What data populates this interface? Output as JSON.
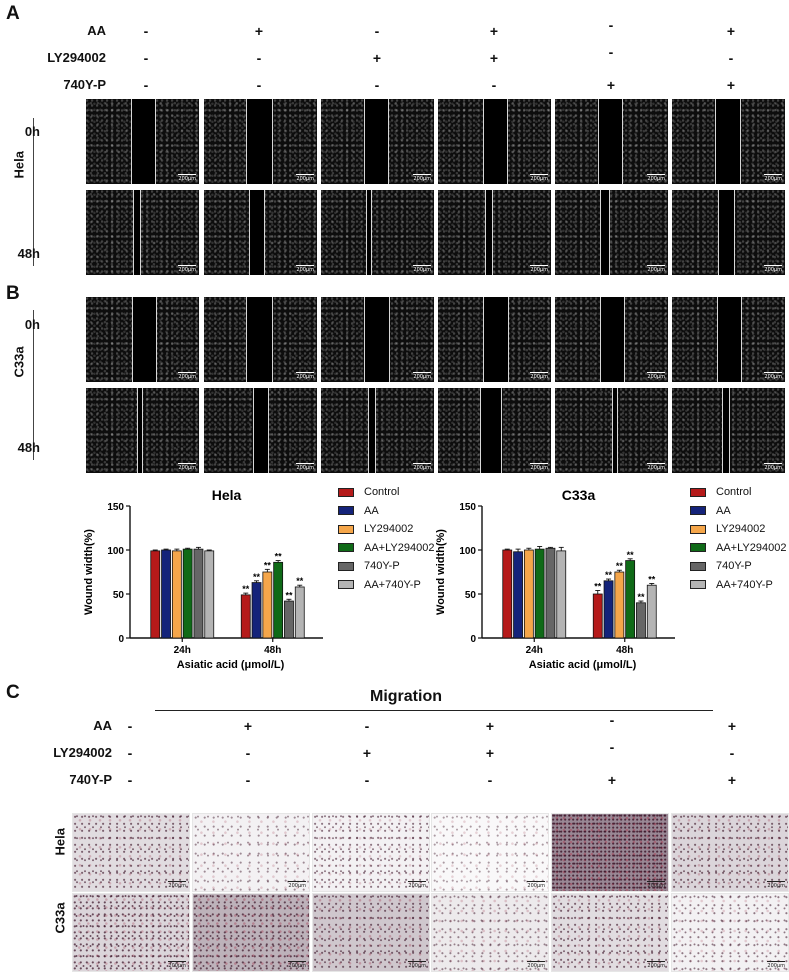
{
  "panels": {
    "A": "A",
    "B": "B",
    "C": "C"
  },
  "conditions": {
    "labels": [
      "AA",
      "LY294002",
      "740Y-P"
    ],
    "signs": [
      [
        "-",
        "+",
        "-",
        "+",
        "-",
        "+"
      ],
      [
        "-",
        "-",
        "+",
        "+",
        "-",
        "-"
      ],
      [
        "-",
        "-",
        "-",
        "-",
        "+",
        "+"
      ]
    ]
  },
  "wound": {
    "hela_label": "Hela",
    "c33a_label": "C33a",
    "t0": "0h",
    "t48": "48h",
    "scale": "200μm"
  },
  "migration": {
    "title": "Migration",
    "rows": [
      "Hela",
      "C33a"
    ],
    "scale": "200μm"
  },
  "colors": {
    "Control": "#b51a1a",
    "AA": "#14237a",
    "LY294002": "#f5a64a",
    "AA+LY294002": "#0f6a17",
    "740Y-P": "#666666",
    "AA+740Y-P": "#b4b4b4"
  },
  "chart_data": [
    {
      "type": "bar",
      "title": "Hela",
      "ylabel": "Wound width(%)",
      "xlabel": "Asiatic acid (μmol/L)",
      "categories": [
        "24h",
        "48h"
      ],
      "ylim": [
        0,
        150
      ],
      "yticks": [
        0,
        50,
        100,
        150
      ],
      "series": [
        {
          "name": "Control",
          "values": [
            99,
            49
          ],
          "errors": [
            1,
            2
          ],
          "sig": [
            "",
            "**"
          ]
        },
        {
          "name": "AA",
          "values": [
            100,
            63
          ],
          "errors": [
            1,
            2
          ],
          "sig": [
            "",
            "**"
          ]
        },
        {
          "name": "LY294002",
          "values": [
            99,
            75
          ],
          "errors": [
            2,
            3
          ],
          "sig": [
            "",
            "**"
          ]
        },
        {
          "name": "AA+LY294002",
          "values": [
            101,
            86
          ],
          "errors": [
            1,
            2
          ],
          "sig": [
            "",
            "**"
          ]
        },
        {
          "name": "740Y-P",
          "values": [
            101,
            42
          ],
          "errors": [
            2,
            2
          ],
          "sig": [
            "",
            "**"
          ]
        },
        {
          "name": "AA+740Y-P",
          "values": [
            99,
            58
          ],
          "errors": [
            1,
            2
          ],
          "sig": [
            "",
            "**"
          ]
        }
      ],
      "legend": "right"
    },
    {
      "type": "bar",
      "title": "C33a",
      "ylabel": "Wound width(%)",
      "xlabel": "Asiatic acid (μmol/L)",
      "categories": [
        "24h",
        "48h"
      ],
      "ylim": [
        0,
        150
      ],
      "yticks": [
        0,
        50,
        100,
        150
      ],
      "series": [
        {
          "name": "Control",
          "values": [
            100,
            50
          ],
          "errors": [
            1,
            4
          ],
          "sig": [
            "",
            "**"
          ]
        },
        {
          "name": "AA",
          "values": [
            98,
            65
          ],
          "errors": [
            3,
            2
          ],
          "sig": [
            "",
            "**"
          ]
        },
        {
          "name": "LY294002",
          "values": [
            100,
            75
          ],
          "errors": [
            2,
            2
          ],
          "sig": [
            "",
            "**"
          ]
        },
        {
          "name": "AA+LY294002",
          "values": [
            101,
            88
          ],
          "errors": [
            3,
            2
          ],
          "sig": [
            "",
            "**"
          ]
        },
        {
          "name": "740Y-P",
          "values": [
            102,
            40
          ],
          "errors": [
            1,
            2
          ],
          "sig": [
            "",
            "**"
          ]
        },
        {
          "name": "AA+740Y-P",
          "values": [
            99,
            60
          ],
          "errors": [
            4,
            2
          ],
          "sig": [
            "",
            "**"
          ]
        }
      ],
      "legend": "right"
    }
  ]
}
